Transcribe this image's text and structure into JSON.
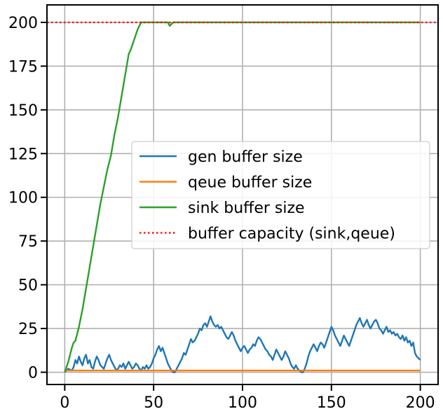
{
  "chart_data": {
    "type": "line",
    "title": "",
    "xlabel": "",
    "ylabel": "",
    "xlim": [
      -10,
      210
    ],
    "ylim": [
      -7,
      210
    ],
    "x_ticks": [
      0,
      50,
      100,
      150,
      200
    ],
    "y_ticks": [
      0,
      25,
      50,
      75,
      100,
      125,
      150,
      175,
      200
    ],
    "grid": true,
    "legend_position": "center-right",
    "series": [
      {
        "name": "gen buffer size",
        "color": "#1f77b4",
        "style": "solid",
        "points": [
          [
            0,
            0
          ],
          [
            2,
            2
          ],
          [
            4,
            1
          ],
          [
            5,
            3
          ],
          [
            6,
            7
          ],
          [
            7,
            5
          ],
          [
            8,
            9
          ],
          [
            9,
            6
          ],
          [
            10,
            4
          ],
          [
            11,
            8
          ],
          [
            12,
            10
          ],
          [
            13,
            5
          ],
          [
            14,
            7
          ],
          [
            15,
            3
          ],
          [
            16,
            2
          ],
          [
            17,
            6
          ],
          [
            18,
            9
          ],
          [
            19,
            7
          ],
          [
            20,
            4
          ],
          [
            21,
            3
          ],
          [
            22,
            2
          ],
          [
            23,
            5
          ],
          [
            24,
            8
          ],
          [
            25,
            10
          ],
          [
            26,
            7
          ],
          [
            27,
            5
          ],
          [
            28,
            3
          ],
          [
            29,
            1
          ],
          [
            30,
            2
          ],
          [
            31,
            4
          ],
          [
            32,
            3
          ],
          [
            33,
            5
          ],
          [
            34,
            2
          ],
          [
            35,
            4
          ],
          [
            36,
            6
          ],
          [
            37,
            4
          ],
          [
            38,
            2
          ],
          [
            39,
            3
          ],
          [
            40,
            5
          ],
          [
            41,
            4
          ],
          [
            42,
            2
          ],
          [
            43,
            1
          ],
          [
            44,
            3
          ],
          [
            45,
            2
          ],
          [
            46,
            4
          ],
          [
            47,
            2
          ],
          [
            48,
            3
          ],
          [
            49,
            5
          ],
          [
            50,
            8
          ],
          [
            51,
            10
          ],
          [
            52,
            13
          ],
          [
            53,
            15
          ],
          [
            54,
            12
          ],
          [
            55,
            14
          ],
          [
            56,
            11
          ],
          [
            57,
            8
          ],
          [
            58,
            5
          ],
          [
            59,
            3
          ],
          [
            60,
            1
          ],
          [
            61,
            0
          ],
          [
            62,
            0
          ],
          [
            63,
            2
          ],
          [
            64,
            4
          ],
          [
            65,
            6
          ],
          [
            66,
            8
          ],
          [
            67,
            11
          ],
          [
            68,
            10
          ],
          [
            69,
            13
          ],
          [
            70,
            16
          ],
          [
            71,
            19
          ],
          [
            72,
            17
          ],
          [
            73,
            18
          ],
          [
            74,
            20
          ],
          [
            75,
            22
          ],
          [
            76,
            25
          ],
          [
            77,
            24
          ],
          [
            78,
            27
          ],
          [
            79,
            28
          ],
          [
            80,
            26
          ],
          [
            81,
            29
          ],
          [
            82,
            32
          ],
          [
            83,
            29
          ],
          [
            84,
            27
          ],
          [
            85,
            26
          ],
          [
            86,
            27
          ],
          [
            87,
            25
          ],
          [
            88,
            26
          ],
          [
            89,
            24
          ],
          [
            90,
            22
          ],
          [
            91,
            20
          ],
          [
            92,
            19
          ],
          [
            93,
            21
          ],
          [
            94,
            23
          ],
          [
            95,
            21
          ],
          [
            96,
            18
          ],
          [
            97,
            16
          ],
          [
            98,
            14
          ],
          [
            99,
            12
          ],
          [
            100,
            14
          ],
          [
            101,
            15
          ],
          [
            102,
            13
          ],
          [
            103,
            11
          ],
          [
            104,
            13
          ],
          [
            105,
            14
          ],
          [
            106,
            16
          ],
          [
            107,
            15
          ],
          [
            108,
            18
          ],
          [
            109,
            20
          ],
          [
            110,
            19
          ],
          [
            111,
            17
          ],
          [
            112,
            15
          ],
          [
            113,
            13
          ],
          [
            114,
            12
          ],
          [
            115,
            10
          ],
          [
            116,
            9
          ],
          [
            117,
            7
          ],
          [
            118,
            10
          ],
          [
            119,
            13
          ],
          [
            120,
            11
          ],
          [
            121,
            9
          ],
          [
            122,
            7
          ],
          [
            123,
            9
          ],
          [
            124,
            12
          ],
          [
            125,
            10
          ],
          [
            126,
            8
          ],
          [
            127,
            5
          ],
          [
            128,
            3
          ],
          [
            129,
            2
          ],
          [
            130,
            4
          ],
          [
            131,
            2
          ],
          [
            132,
            1
          ],
          [
            133,
            0
          ],
          [
            134,
            0
          ],
          [
            135,
            2
          ],
          [
            136,
            5
          ],
          [
            137,
            9
          ],
          [
            138,
            12
          ],
          [
            139,
            14
          ],
          [
            140,
            16
          ],
          [
            141,
            14
          ],
          [
            142,
            12
          ],
          [
            143,
            15
          ],
          [
            144,
            17
          ],
          [
            145,
            16
          ],
          [
            146,
            14
          ],
          [
            147,
            17
          ],
          [
            148,
            20
          ],
          [
            149,
            23
          ],
          [
            150,
            26
          ],
          [
            151,
            24
          ],
          [
            152,
            21
          ],
          [
            153,
            19
          ],
          [
            154,
            17
          ],
          [
            155,
            15
          ],
          [
            156,
            18
          ],
          [
            157,
            21
          ],
          [
            158,
            19
          ],
          [
            159,
            17
          ],
          [
            160,
            15
          ],
          [
            161,
            18
          ],
          [
            162,
            21
          ],
          [
            163,
            24
          ],
          [
            164,
            27
          ],
          [
            165,
            29
          ],
          [
            166,
            31
          ],
          [
            167,
            28
          ],
          [
            168,
            26
          ],
          [
            169,
            28
          ],
          [
            170,
            30
          ],
          [
            171,
            27
          ],
          [
            172,
            25
          ],
          [
            173,
            27
          ],
          [
            174,
            29
          ],
          [
            175,
            30
          ],
          [
            176,
            28
          ],
          [
            177,
            25
          ],
          [
            178,
            24
          ],
          [
            179,
            22
          ],
          [
            180,
            24
          ],
          [
            181,
            26
          ],
          [
            182,
            23
          ],
          [
            183,
            24
          ],
          [
            184,
            22
          ],
          [
            185,
            23
          ],
          [
            186,
            21
          ],
          [
            187,
            22
          ],
          [
            188,
            20
          ],
          [
            189,
            19
          ],
          [
            190,
            21
          ],
          [
            191,
            18
          ],
          [
            192,
            20
          ],
          [
            193,
            17
          ],
          [
            194,
            18
          ],
          [
            195,
            15
          ],
          [
            196,
            17
          ],
          [
            197,
            11
          ],
          [
            198,
            9
          ],
          [
            199,
            8
          ],
          [
            200,
            7
          ]
        ]
      },
      {
        "name": "qeue buffer size",
        "color": "#ff7f0e",
        "style": "solid",
        "points": [
          [
            0,
            1
          ],
          [
            200,
            1
          ]
        ]
      },
      {
        "name": "sink buffer size",
        "color": "#2ca02c",
        "style": "solid",
        "points": [
          [
            0,
            0
          ],
          [
            2,
            6
          ],
          [
            4,
            14
          ],
          [
            5,
            17
          ],
          [
            6,
            18
          ],
          [
            7,
            22
          ],
          [
            8,
            26
          ],
          [
            10,
            36
          ],
          [
            12,
            48
          ],
          [
            14,
            60
          ],
          [
            16,
            72
          ],
          [
            18,
            84
          ],
          [
            20,
            96
          ],
          [
            22,
            106
          ],
          [
            24,
            116
          ],
          [
            26,
            124
          ],
          [
            28,
            136
          ],
          [
            30,
            146
          ],
          [
            32,
            158
          ],
          [
            34,
            170
          ],
          [
            36,
            182
          ],
          [
            37,
            184
          ],
          [
            39,
            190
          ],
          [
            41,
            196
          ],
          [
            43,
            200
          ],
          [
            55,
            200
          ],
          [
            58,
            200
          ],
          [
            59,
            198
          ],
          [
            60,
            199
          ],
          [
            61,
            200
          ],
          [
            200,
            200
          ]
        ]
      },
      {
        "name": "buffer capacity (sink,qeue)",
        "color": "#ff0000",
        "style": "dotted",
        "points": [
          [
            -10,
            200
          ],
          [
            210,
            200
          ]
        ]
      }
    ]
  }
}
